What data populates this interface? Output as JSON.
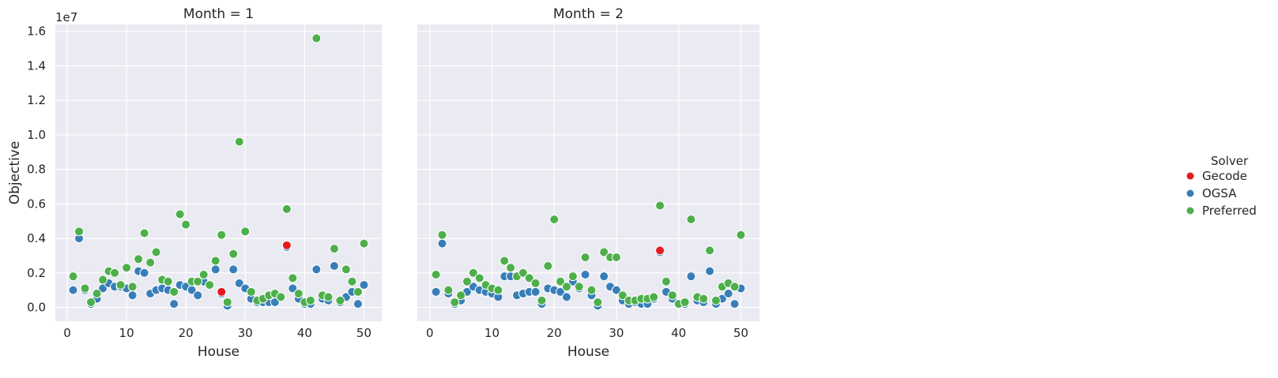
{
  "chart_data": {
    "type": "scatter",
    "x_label": "House",
    "y_label": "Objective",
    "y_exponent_label": "1e7",
    "x_ticks": [
      0,
      10,
      20,
      30,
      40,
      50
    ],
    "x_tick_labels": [
      "0",
      "10",
      "20",
      "30",
      "40",
      "50"
    ],
    "y_ticks": [
      0.0,
      0.2,
      0.4,
      0.6,
      0.8,
      1.0,
      1.2,
      1.4,
      1.6
    ],
    "y_tick_labels": [
      "0.0",
      "0.2",
      "0.4",
      "0.6",
      "0.8",
      "1.0",
      "1.2",
      "1.4",
      "1.6"
    ],
    "xlim": [
      -2,
      53
    ],
    "ylim": [
      -0.08,
      1.64
    ],
    "grid": true,
    "legend": {
      "title": "Solver",
      "placement": "right",
      "entries": [
        {
          "name": "Gecode",
          "color": "#e41a1c"
        },
        {
          "name": "OGSA",
          "color": "#377eb8"
        },
        {
          "name": "Preferred",
          "color": "#4daf4a"
        }
      ]
    },
    "panels": [
      {
        "title": "Month = 1",
        "series": [
          {
            "name": "OGSA",
            "color": "#377eb8",
            "x": [
              1,
              2,
              3,
              4,
              5,
              6,
              7,
              8,
              9,
              10,
              11,
              12,
              13,
              14,
              15,
              16,
              17,
              18,
              19,
              20,
              21,
              22,
              23,
              24,
              25,
              26,
              27,
              28,
              29,
              30,
              31,
              32,
              33,
              34,
              35,
              36,
              37,
              38,
              39,
              40,
              41,
              42,
              43,
              44,
              45,
              46,
              47,
              48,
              49,
              50
            ],
            "y": [
              0.1,
              0.4,
              0.1,
              0.02,
              0.05,
              0.11,
              0.14,
              0.12,
              0.12,
              0.11,
              0.07,
              0.21,
              0.2,
              0.08,
              0.1,
              0.11,
              0.1,
              0.02,
              0.13,
              0.12,
              0.1,
              0.07,
              0.15,
              0.13,
              0.22,
              0.08,
              0.01,
              0.22,
              0.14,
              0.11,
              0.05,
              0.03,
              0.03,
              0.03,
              0.03,
              0.06,
              0.35,
              0.11,
              0.05,
              0.02,
              0.02,
              0.22,
              0.05,
              0.04,
              0.24,
              0.03,
              0.06,
              0.09,
              0.02,
              0.13
            ]
          },
          {
            "name": "Gecode",
            "color": "#e41a1c",
            "x": [
              26,
              37
            ],
            "y": [
              0.09,
              0.36
            ]
          },
          {
            "name": "Preferred",
            "color": "#4daf4a",
            "x": [
              1,
              2,
              3,
              4,
              5,
              6,
              7,
              8,
              9,
              10,
              11,
              12,
              13,
              14,
              15,
              16,
              17,
              18,
              19,
              20,
              21,
              22,
              23,
              24,
              25,
              26,
              27,
              28,
              29,
              30,
              31,
              32,
              33,
              34,
              35,
              36,
              37,
              38,
              39,
              40,
              41,
              42,
              43,
              44,
              45,
              46,
              47,
              48,
              49,
              50
            ],
            "y": [
              0.18,
              0.44,
              0.11,
              0.03,
              0.08,
              0.16,
              0.21,
              0.2,
              0.13,
              0.23,
              0.12,
              0.28,
              0.43,
              0.26,
              0.32,
              0.16,
              0.15,
              0.09,
              0.54,
              0.48,
              0.15,
              0.15,
              0.19,
              0.13,
              0.27,
              0.42,
              0.03,
              0.31,
              0.96,
              0.44,
              0.09,
              0.04,
              0.05,
              0.07,
              0.08,
              0.06,
              0.57,
              0.17,
              0.08,
              0.03,
              0.04,
              1.56,
              0.07,
              0.06,
              0.34,
              0.04,
              0.22,
              0.15,
              0.09,
              0.37
            ]
          }
        ]
      },
      {
        "title": "Month = 2",
        "series": [
          {
            "name": "OGSA",
            "color": "#377eb8",
            "x": [
              1,
              2,
              3,
              4,
              5,
              6,
              7,
              8,
              9,
              10,
              11,
              12,
              13,
              14,
              15,
              16,
              17,
              18,
              19,
              20,
              21,
              22,
              23,
              24,
              25,
              26,
              27,
              28,
              29,
              30,
              31,
              32,
              33,
              34,
              35,
              36,
              37,
              38,
              39,
              40,
              41,
              42,
              43,
              44,
              45,
              46,
              47,
              48,
              49,
              50
            ],
            "y": [
              0.09,
              0.37,
              0.08,
              0.02,
              0.04,
              0.09,
              0.12,
              0.1,
              0.09,
              0.08,
              0.06,
              0.18,
              0.18,
              0.07,
              0.08,
              0.09,
              0.09,
              0.02,
              0.11,
              0.1,
              0.09,
              0.06,
              0.15,
              0.11,
              0.19,
              0.07,
              0.01,
              0.18,
              0.12,
              0.1,
              0.04,
              0.02,
              0.03,
              0.02,
              0.02,
              0.05,
              0.32,
              0.09,
              0.05,
              0.02,
              0.02,
              0.18,
              0.04,
              0.03,
              0.21,
              0.02,
              0.05,
              0.08,
              0.02,
              0.11
            ]
          },
          {
            "name": "Gecode",
            "color": "#e41a1c",
            "x": [
              37
            ],
            "y": [
              0.33
            ]
          },
          {
            "name": "Preferred",
            "color": "#4daf4a",
            "x": [
              1,
              2,
              3,
              4,
              5,
              6,
              7,
              8,
              9,
              10,
              11,
              12,
              13,
              14,
              15,
              16,
              17,
              18,
              19,
              20,
              21,
              22,
              23,
              24,
              25,
              26,
              27,
              28,
              29,
              30,
              31,
              32,
              33,
              34,
              35,
              36,
              37,
              38,
              39,
              40,
              41,
              42,
              43,
              44,
              45,
              46,
              47,
              48,
              49,
              50
            ],
            "y": [
              0.19,
              0.42,
              0.1,
              0.03,
              0.07,
              0.15,
              0.2,
              0.17,
              0.13,
              0.11,
              0.1,
              0.27,
              0.23,
              0.18,
              0.2,
              0.17,
              0.14,
              0.04,
              0.24,
              0.51,
              0.15,
              0.12,
              0.18,
              0.12,
              0.29,
              0.1,
              0.03,
              0.32,
              0.29,
              0.29,
              0.07,
              0.04,
              0.04,
              0.05,
              0.05,
              0.06,
              0.59,
              0.15,
              0.07,
              0.02,
              0.03,
              0.51,
              0.06,
              0.05,
              0.33,
              0.04,
              0.12,
              0.14,
              0.12,
              0.42
            ]
          }
        ]
      }
    ]
  }
}
